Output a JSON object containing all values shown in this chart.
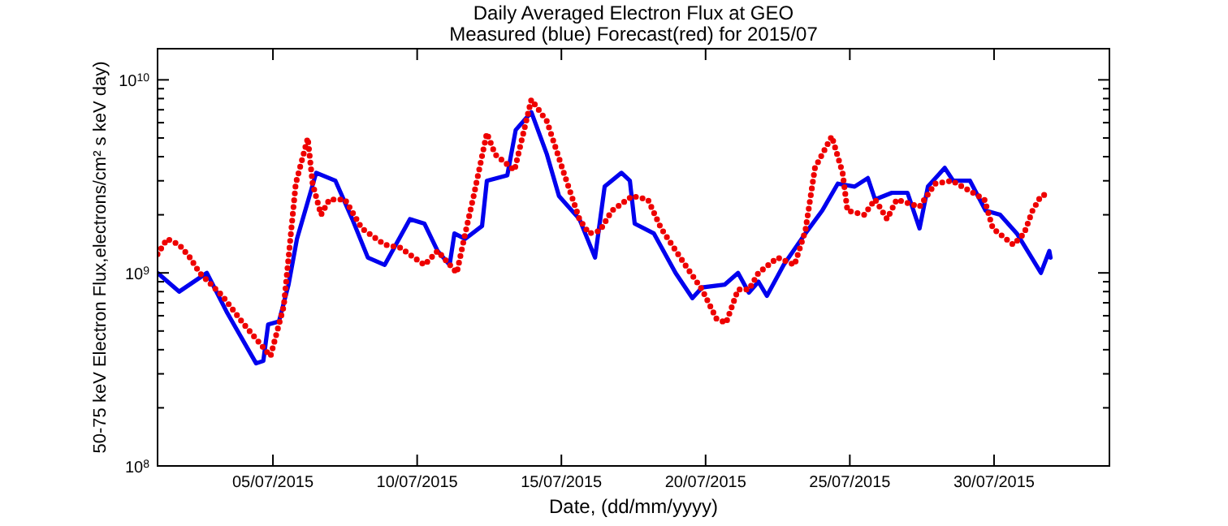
{
  "chart_data": {
    "type": "line",
    "title": "Daily Averaged Electron Flux at GEO",
    "subtitle": "Measured (blue) Forecast(red) for 2015/07",
    "xlabel": "Date, (dd/mm/yyyy)",
    "ylabel": "50-75 keV Electron Flux,electrons/cm² s keV day)",
    "log": true,
    "grid": false,
    "xlim": [
      "2015-07-01",
      "2015-08-03"
    ],
    "xticks": [
      {
        "value": "2015-07-05",
        "label": "05/07/2015"
      },
      {
        "value": "2015-07-10",
        "label": "10/07/2015"
      },
      {
        "value": "2015-07-15",
        "label": "15/07/2015"
      },
      {
        "value": "2015-07-20",
        "label": "20/07/2015"
      },
      {
        "value": "2015-07-25",
        "label": "25/07/2015"
      },
      {
        "value": "2015-07-30",
        "label": "30/07/2015"
      }
    ],
    "ylim": [
      100000000,
      14500000000
    ],
    "yticks": [
      {
        "value": 100000000,
        "label": "10$^{8}$"
      },
      {
        "value": 1000000000,
        "label": "10$^{9}$"
      },
      {
        "value": 10000000000,
        "label": "10$^{10}$"
      }
    ],
    "series": [
      {
        "color": "#0000ee",
        "line_style": "solid",
        "x": [
          "2015-07-01T00:00",
          "2015-07-01T18:00",
          "2015-07-02T17:00",
          "2015-07-03T10:00",
          "2015-07-04T10:00",
          "2015-07-04T16:00",
          "2015-07-04T20:00",
          "2015-07-05T05:00",
          "2015-07-05T13:00",
          "2015-07-05T20:00",
          "2015-07-06T12:00",
          "2015-07-07T04:00",
          "2015-07-07T18:00",
          "2015-07-08T07:00",
          "2015-07-08T21:00",
          "2015-07-09T18:00",
          "2015-07-10T06:00",
          "2015-07-10T17:00",
          "2015-07-11T03:00",
          "2015-07-11T07:00",
          "2015-07-11T16:00",
          "2015-07-12T06:00",
          "2015-07-12T10:00",
          "2015-07-13T03:00",
          "2015-07-13T10:00",
          "2015-07-13T23:00",
          "2015-07-14T12:00",
          "2015-07-14T22:00",
          "2015-07-15T15:00",
          "2015-07-16T04:00",
          "2015-07-16T12:00",
          "2015-07-17T02:00",
          "2015-07-17T09:00",
          "2015-07-17T13:00",
          "2015-07-18T05:00",
          "2015-07-18T23:00",
          "2015-07-19T13:00",
          "2015-07-19T21:00",
          "2015-07-20T16:00",
          "2015-07-21T03:00",
          "2015-07-21T12:00",
          "2015-07-21T20:00",
          "2015-07-22T03:00",
          "2015-07-22T17:00",
          "2015-07-23T11:00",
          "2015-07-24T01:00",
          "2015-07-24T14:00",
          "2015-07-25T04:00",
          "2015-07-25T15:00",
          "2015-07-25T21:00",
          "2015-07-26T11:00",
          "2015-07-27T00:00",
          "2015-07-27T10:00",
          "2015-07-27T17:00",
          "2015-07-28T07:00",
          "2015-07-28T14:00",
          "2015-07-29T04:00",
          "2015-07-29T17:00",
          "2015-07-30T05:00",
          "2015-07-30T19:00",
          "2015-07-31T15:00",
          "2015-07-31T22:00",
          "2015-07-31T23:00"
        ],
        "values": [
          1000000000,
          800000000,
          1000000000,
          620000000,
          340000000,
          350000000,
          540000000,
          560000000,
          870000000,
          1500000000,
          3300000000,
          3000000000,
          1900000000,
          1200000000,
          1100000000,
          1900000000,
          1800000000,
          1300000000,
          1100000000,
          1600000000,
          1500000000,
          1750000000,
          3000000000,
          3200000000,
          5500000000,
          6800000000,
          4100000000,
          2500000000,
          1900000000,
          1200000000,
          2800000000,
          3300000000,
          3000000000,
          1800000000,
          1600000000,
          1000000000,
          740000000,
          840000000,
          870000000,
          1000000000,
          790000000,
          900000000,
          760000000,
          1100000000,
          1600000000,
          2100000000,
          2900000000,
          2800000000,
          3100000000,
          2400000000,
          2600000000,
          2600000000,
          1700000000,
          2800000000,
          3500000000,
          3000000000,
          3000000000,
          2100000000,
          2000000000,
          1600000000,
          1000000000,
          1300000000,
          1200000000
        ]
      },
      {
        "color": "#ee0000",
        "line_style": "dotted",
        "x": [
          "2015-07-01T00:00",
          "2015-07-01T08:00",
          "2015-07-01T18:00",
          "2015-07-02T03:00",
          "2015-07-02T11:00",
          "2015-07-03T06:00",
          "2015-07-03T23:00",
          "2015-07-04T22:00",
          "2015-07-05T09:00",
          "2015-07-05T13:00",
          "2015-07-05T19:00",
          "2015-07-06T05:00",
          "2015-07-06T09:00",
          "2015-07-06T16:00",
          "2015-07-06T23:00",
          "2015-07-07T12:00",
          "2015-07-08T02:00",
          "2015-07-08T21:00",
          "2015-07-09T10:00",
          "2015-07-10T06:00",
          "2015-07-10T17:00",
          "2015-07-11T09:00",
          "2015-07-11T16:00",
          "2015-07-11T23:00",
          "2015-07-12T10:00",
          "2015-07-12T17:00",
          "2015-07-13T09:00",
          "2015-07-13T23:00",
          "2015-07-14T12:00",
          "2015-07-15T02:00",
          "2015-07-15T15:00",
          "2015-07-15T23:00",
          "2015-07-16T08:00",
          "2015-07-16T18:00",
          "2015-07-17T11:00",
          "2015-07-18T00:00",
          "2015-07-18T11:00",
          "2015-07-19T07:00",
          "2015-07-19T21:00",
          "2015-07-20T09:00",
          "2015-07-20T17:00",
          "2015-07-21T03:00",
          "2015-07-21T12:00",
          "2015-07-21T20:00",
          "2015-07-22T12:00",
          "2015-07-23T02:00",
          "2015-07-23T11:00",
          "2015-07-23T19:00",
          "2015-07-24T09:00",
          "2015-07-24T18:00",
          "2015-07-24T22:00",
          "2015-07-25T12:00",
          "2015-07-25T21:00",
          "2015-07-26T07:00",
          "2015-07-26T15:00",
          "2015-07-27T10:00",
          "2015-07-27T23:00",
          "2015-07-28T13:00",
          "2015-07-29T02:00",
          "2015-07-29T16:00",
          "2015-07-29T23:00",
          "2015-07-30T16:00",
          "2015-07-31T01:00",
          "2015-07-31T08:00",
          "2015-07-31T15:00",
          "2015-07-31T23:00"
        ],
        "values": [
          1250000000,
          1500000000,
          1400000000,
          1200000000,
          1000000000,
          760000000,
          550000000,
          370000000,
          670000000,
          1200000000,
          2900000000,
          5000000000,
          2900000000,
          2000000000,
          2400000000,
          2400000000,
          1700000000,
          1400000000,
          1350000000,
          1100000000,
          1300000000,
          1000000000,
          1600000000,
          2500000000,
          5300000000,
          4100000000,
          3400000000,
          7900000000,
          6100000000,
          3300000000,
          1900000000,
          1600000000,
          1650000000,
          2100000000,
          2500000000,
          2400000000,
          1700000000,
          1100000000,
          820000000,
          580000000,
          550000000,
          820000000,
          820000000,
          1000000000,
          1200000000,
          1100000000,
          1650000000,
          3500000000,
          5100000000,
          3300000000,
          2100000000,
          2000000000,
          2400000000,
          1900000000,
          2400000000,
          2200000000,
          2900000000,
          3000000000,
          2700000000,
          2400000000,
          1700000000,
          1400000000,
          1600000000,
          2100000000,
          2500000000,
          2600000000
        ]
      }
    ]
  }
}
